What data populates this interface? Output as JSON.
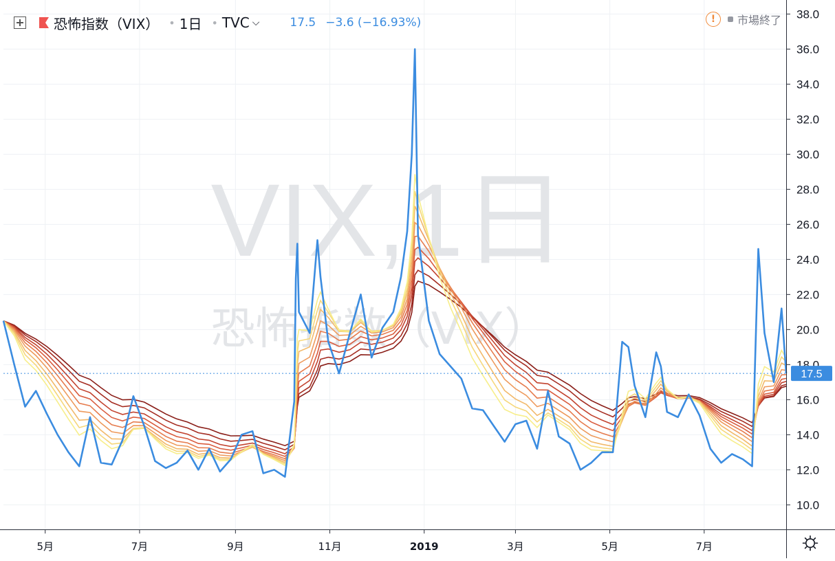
{
  "legend": {
    "title": "恐怖指数（VIX）",
    "interval": "1日",
    "exchange": "TVC",
    "price": "17.5",
    "change": "−3.6 (−16.93%)",
    "chevron_icon": "chevron-down-icon",
    "expand_icon": "plus-square-icon",
    "flag_icon": "flag-icon"
  },
  "status": {
    "market_status": "市場終了",
    "alert_icon": "exclamation-circle-icon",
    "alert_color": "#f08a3a"
  },
  "watermark": {
    "line1": "VIX,1日",
    "line2": "恐怖指数（VIX）"
  },
  "price_label": "17.5",
  "settings_icon": "gear-icon",
  "colors": {
    "price_line": "#3b8ce0",
    "ma_ribbon": [
      "#f7ee8a",
      "#f6d77a",
      "#f2b96a",
      "#ee9a5c",
      "#e67c4e",
      "#d95c3e",
      "#c2432f",
      "#a52d22",
      "#8a1e18"
    ],
    "grid": "#eef1f4",
    "axis_text": "#131722",
    "price_label_bg": "#3b8ce0"
  },
  "chart_data": {
    "type": "line",
    "title": "恐怖指数（VIX）",
    "xlabel": "",
    "ylabel": "",
    "x_tick_labels": [
      "5月",
      "7月",
      "9月",
      "11月",
      "2019",
      "3月",
      "5月",
      "7月"
    ],
    "y_tick_labels": [
      "10.0",
      "12.0",
      "14.0",
      "16.0",
      "18.0",
      "20.0",
      "22.0",
      "24.0",
      "26.0",
      "28.0",
      "30.0",
      "32.0",
      "34.0",
      "36.0",
      "38.0"
    ],
    "ylim": [
      8.6,
      38.8
    ],
    "x_range": [
      "2018-04-04",
      "2019-08-23"
    ],
    "grid": true,
    "legend": "none",
    "series": [
      {
        "x": [
          "2018-04-04",
          "2018-04-11",
          "2018-04-18",
          "2018-04-25",
          "2018-05-02",
          "2018-05-09",
          "2018-05-16",
          "2018-05-23",
          "2018-05-30",
          "2018-06-06",
          "2018-06-13",
          "2018-06-20",
          "2018-06-27",
          "2018-07-04",
          "2018-07-11",
          "2018-07-18",
          "2018-07-25",
          "2018-08-01",
          "2018-08-08",
          "2018-08-15",
          "2018-08-22",
          "2018-08-29",
          "2018-09-05",
          "2018-09-12",
          "2018-09-19",
          "2018-09-26",
          "2018-10-03",
          "2018-10-09",
          "2018-10-10",
          "2018-10-11",
          "2018-10-12",
          "2018-10-19",
          "2018-10-24",
          "2018-10-26",
          "2018-10-31",
          "2018-11-07",
          "2018-11-14",
          "2018-11-21",
          "2018-11-28",
          "2018-12-05",
          "2018-12-12",
          "2018-12-17",
          "2018-12-21",
          "2018-12-24",
          "2018-12-26",
          "2018-12-28",
          "2019-01-04",
          "2019-01-11",
          "2019-01-18",
          "2019-01-25",
          "2019-02-01",
          "2019-02-08",
          "2019-02-15",
          "2019-02-22",
          "2019-03-01",
          "2019-03-08",
          "2019-03-15",
          "2019-03-22",
          "2019-03-29",
          "2019-04-05",
          "2019-04-12",
          "2019-04-19",
          "2019-04-26",
          "2019-05-03",
          "2019-05-09",
          "2019-05-13",
          "2019-05-17",
          "2019-05-24",
          "2019-05-31",
          "2019-06-03",
          "2019-06-07",
          "2019-06-14",
          "2019-06-21",
          "2019-06-28",
          "2019-07-05",
          "2019-07-12",
          "2019-07-19",
          "2019-07-26",
          "2019-08-01",
          "2019-08-05",
          "2019-08-09",
          "2019-08-15",
          "2019-08-20",
          "2019-08-23"
        ],
        "values": [
          20.5,
          18.0,
          15.6,
          16.5,
          15.2,
          14.0,
          13.0,
          12.2,
          15.0,
          12.4,
          12.3,
          13.7,
          16.2,
          14.5,
          12.5,
          12.1,
          12.4,
          13.1,
          12.0,
          13.2,
          11.9,
          12.6,
          14.0,
          14.2,
          11.8,
          12.0,
          11.6,
          15.9,
          22.9,
          24.9,
          21.0,
          19.8,
          25.1,
          23.0,
          19.3,
          17.5,
          19.8,
          22.0,
          18.4,
          20.1,
          21.0,
          23.0,
          25.6,
          30.0,
          36.0,
          25.4,
          20.5,
          18.6,
          17.9,
          17.2,
          15.5,
          15.4,
          14.5,
          13.6,
          14.6,
          14.8,
          13.2,
          16.5,
          13.9,
          13.5,
          12.0,
          12.4,
          13.0,
          13.0,
          19.3,
          19.0,
          16.8,
          15.0,
          18.7,
          17.9,
          15.3,
          15.0,
          16.3,
          15.1,
          13.2,
          12.4,
          12.9,
          12.6,
          12.2,
          24.6,
          19.8,
          17.0,
          21.2,
          17.5
        ]
      }
    ]
  }
}
